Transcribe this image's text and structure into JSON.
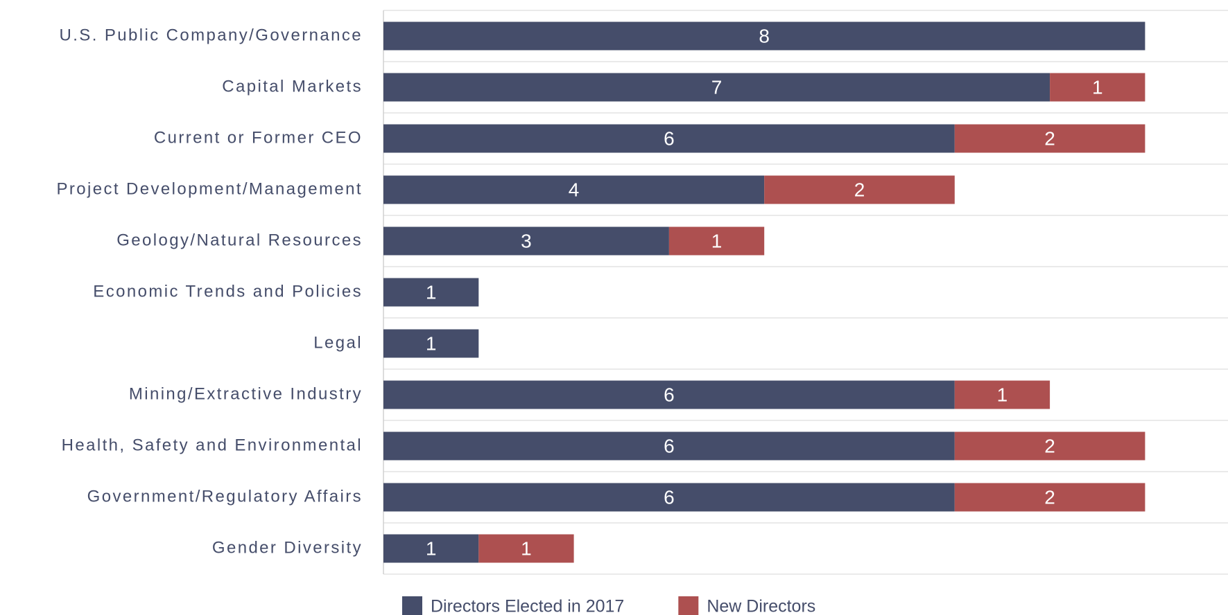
{
  "chart_data": {
    "type": "stacked_bar_horizontal",
    "categories": [
      "U.S. Public Company/Governance",
      "Capital Markets",
      "Current or Former CEO",
      "Project Development/Management",
      "Geology/Natural Resources",
      "Economic Trends and Policies",
      "Legal",
      "Mining/Extractive Industry",
      "Health, Safety and Environmental",
      "Government/Regulatory Affairs",
      "Gender Diversity"
    ],
    "series": [
      {
        "name": "Directors Elected in 2017",
        "color": "#454d6a",
        "values": [
          8,
          7,
          6,
          4,
          3,
          1,
          1,
          6,
          6,
          6,
          1
        ]
      },
      {
        "name": "New Directors",
        "color": "#ad5050",
        "values": [
          null,
          1,
          2,
          2,
          1,
          null,
          null,
          1,
          2,
          2,
          1
        ]
      }
    ],
    "xlim": [
      0,
      9
    ]
  }
}
